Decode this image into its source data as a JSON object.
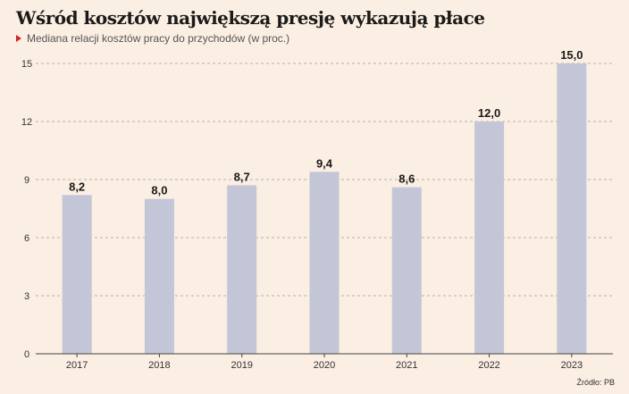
{
  "title": "Wśród kosztów największą presję wykazują płace",
  "subtitle": "Mediana relacji kosztów pracy do przychodów (w proc.)",
  "source": "Źródło: PB",
  "colors": {
    "background": "#fbeee2",
    "bar": "#c3c6d6",
    "accent": "#d0262a",
    "grid": "#b9b3ad",
    "axis": "#444444"
  },
  "chart_data": {
    "type": "bar",
    "categories": [
      "2017",
      "2018",
      "2019",
      "2020",
      "2021",
      "2022",
      "2023"
    ],
    "values": [
      8.2,
      8.0,
      8.7,
      9.4,
      8.6,
      12.0,
      15.0
    ],
    "value_labels": [
      "8,2",
      "8,0",
      "8,7",
      "9,4",
      "8,6",
      "12,0",
      "15,0"
    ],
    "y_ticks": [
      0,
      3,
      6,
      9,
      12,
      15
    ],
    "y_tick_labels": [
      "0",
      "3",
      "6",
      "9",
      "12",
      "15"
    ],
    "ylim": [
      0,
      15
    ],
    "grid": true,
    "xlabel": "",
    "ylabel": ""
  }
}
